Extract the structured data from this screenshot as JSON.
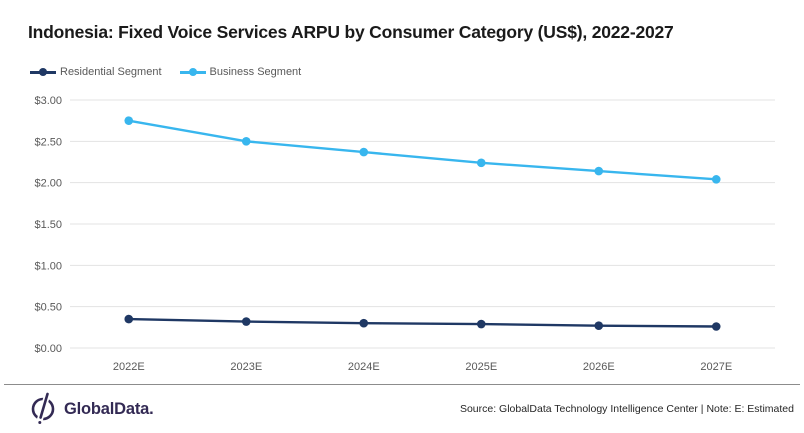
{
  "title": "Indonesia: Fixed Voice Services ARPU by Consumer Category (US$), 2022-2027",
  "legend": [
    {
      "label": "Residential Segment",
      "color": "#1f3864"
    },
    {
      "label": "Business Segment",
      "color": "#38b6ee"
    }
  ],
  "chart_data": {
    "type": "line",
    "title": "Indonesia: Fixed Voice Services ARPU by Consumer Category (US$), 2022-2027",
    "categories": [
      "2022E",
      "2023E",
      "2024E",
      "2025E",
      "2026E",
      "2027E"
    ],
    "series": [
      {
        "name": "Residential Segment",
        "color": "#1f3864",
        "values": [
          0.35,
          0.32,
          0.3,
          0.29,
          0.27,
          0.26
        ]
      },
      {
        "name": "Business Segment",
        "color": "#38b6ee",
        "values": [
          2.75,
          2.5,
          2.37,
          2.24,
          2.14,
          2.04
        ]
      }
    ],
    "xlabel": "",
    "ylabel": "",
    "ylim": [
      0.0,
      3.0
    ],
    "ytick_step": 0.5,
    "ytick_prefix": "$",
    "grid": "horizontal",
    "legend_position": "top-left",
    "colors": {
      "gridline": "#e3e3e3",
      "axis_text": "#595959",
      "title_text": "#1a1a1a"
    }
  },
  "footer": {
    "logo_text": "GlobalData.",
    "logo_color": "#332a54",
    "source_note": "Source: GlobalData Technology Intelligence Center | Note: E: Estimated"
  }
}
